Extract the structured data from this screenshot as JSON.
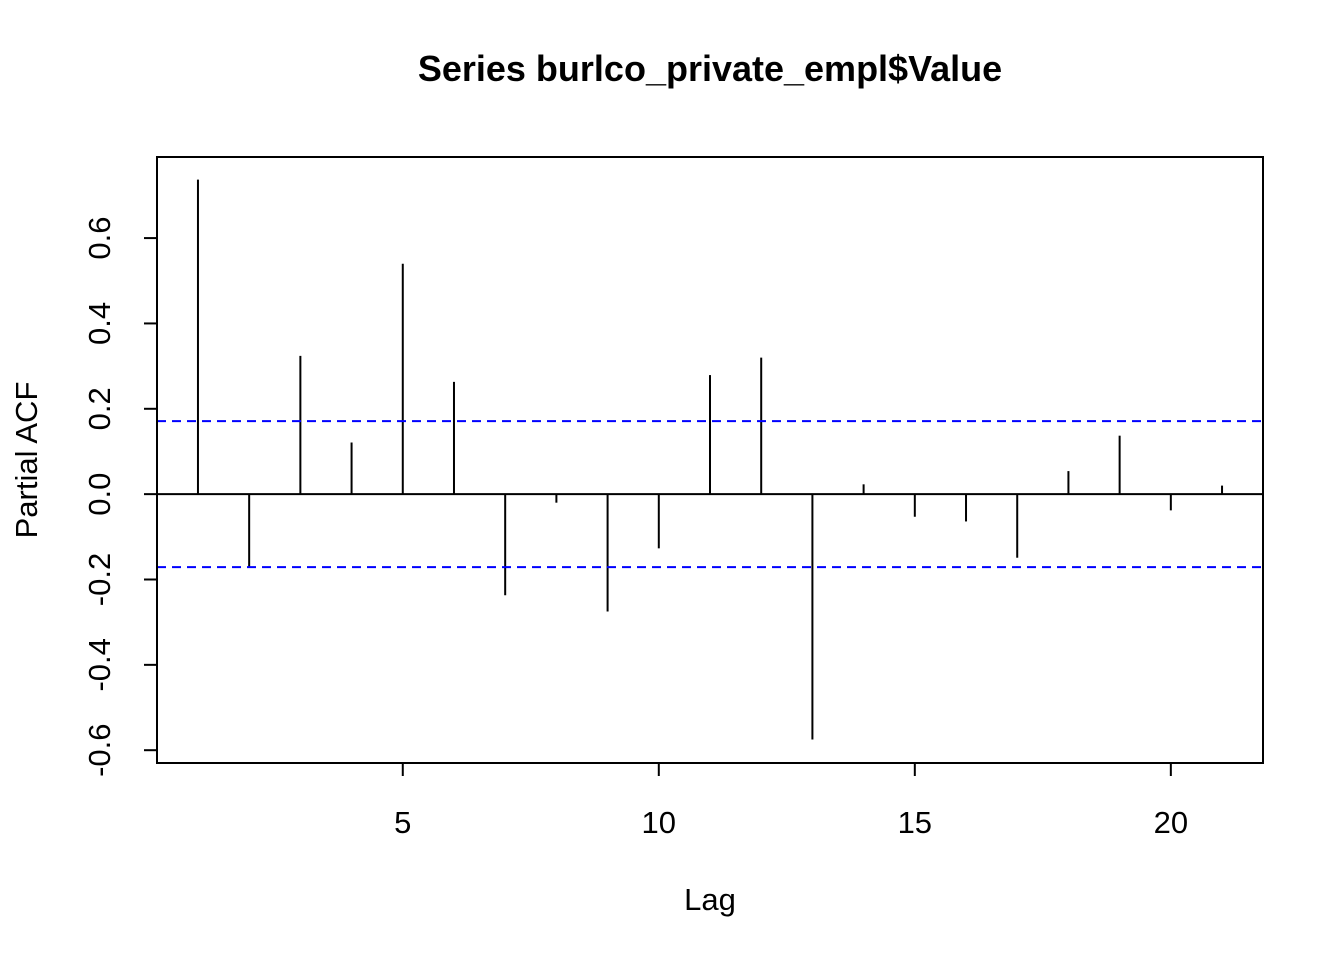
{
  "chart_data": {
    "type": "bar",
    "title": "Series  burlco_private_empl$Value",
    "xlabel": "Lag",
    "ylabel": "Partial ACF",
    "xlim": [
      0.2,
      21.8
    ],
    "ylim": [
      -0.63,
      0.79
    ],
    "x_ticks": [
      5,
      10,
      15,
      20
    ],
    "x_tick_labels": [
      "5",
      "10",
      "15",
      "20"
    ],
    "y_ticks": [
      -0.6,
      -0.4,
      -0.2,
      0.0,
      0.2,
      0.4,
      0.6
    ],
    "y_tick_labels": [
      "-0.6",
      "-0.4",
      "-0.2",
      "0.0",
      "0.2",
      "0.4",
      "0.6"
    ],
    "lags": [
      1,
      2,
      3,
      4,
      5,
      6,
      7,
      8,
      9,
      10,
      11,
      12,
      13,
      14,
      15,
      16,
      17,
      18,
      19,
      20,
      21
    ],
    "values": [
      0.737,
      -0.172,
      0.324,
      0.121,
      0.54,
      0.263,
      -0.237,
      -0.02,
      -0.275,
      -0.127,
      0.279,
      0.32,
      -0.575,
      0.023,
      -0.053,
      -0.064,
      -0.149,
      0.054,
      0.137,
      -0.038,
      0.02
    ],
    "confidence_bound": 0.171,
    "colors": {
      "bars": "#000000",
      "ci_lines": "#0000ff",
      "frame": "#000000"
    }
  }
}
